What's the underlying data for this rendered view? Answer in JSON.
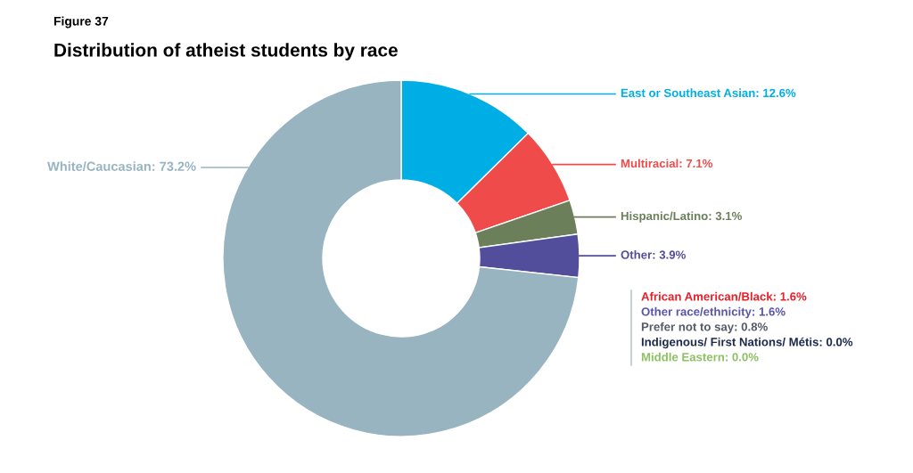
{
  "chart_data": {
    "type": "donut",
    "subtitle": "Figure 37",
    "title": "Distribution of atheist students by race",
    "categories": [
      "East or Southeast Asian",
      "Multiracial",
      "Hispanic/Latino",
      "Other",
      "White/Caucasian"
    ],
    "value_labels": [
      "12.6%",
      "7.1%",
      "3.1%",
      "3.9%",
      "73.2%"
    ],
    "values": [
      12.6,
      7.1,
      3.1,
      3.9,
      73.2
    ],
    "colors": [
      "#00aee6",
      "#ef4b4b",
      "#6b7f5a",
      "#534e9c",
      "#98b4c0"
    ],
    "annotations": [
      "African American/Black: 1.6%",
      "Other race/ethnicity: 1.6%",
      "Prefer not to say: 0.8%",
      "Indigenous/ First Nations/ Métis: 0.0%",
      "Middle Eastern: 0.0%"
    ]
  }
}
